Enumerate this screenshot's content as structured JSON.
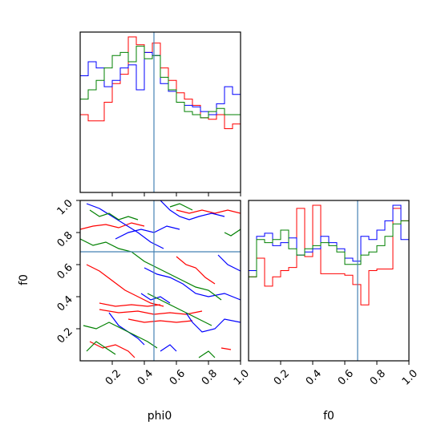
{
  "chart_data": {
    "type": "corner",
    "variables": [
      "phi0",
      "f0"
    ],
    "truths": {
      "phi0": 0.46,
      "f0": 0.68
    },
    "ranges": {
      "phi0": [
        0,
        1
      ],
      "f0": [
        0,
        1
      ]
    },
    "ticks": {
      "phi0": [
        0.2,
        0.4,
        0.6,
        0.8,
        1.0
      ],
      "f0": [
        0.2,
        0.4,
        0.6,
        0.8,
        1.0
      ]
    },
    "tick_labels": {
      "phi0": [
        "0.2",
        "0.4",
        "0.6",
        "0.8",
        "1.0"
      ],
      "f0": [
        "0.2",
        "0.4",
        "0.6",
        "0.8",
        "1.0"
      ]
    },
    "xlabel_phi0": "phi0",
    "xlabel_f0": "f0",
    "ylabel_f0": "f0",
    "series_colors": [
      "#ff0000",
      "#0000ff",
      "#008000"
    ],
    "hist_phi0": {
      "bins": 20,
      "series": [
        {
          "color": "#ff0000",
          "values": [
            0.5,
            0.46,
            0.46,
            0.58,
            0.7,
            0.76,
            1.0,
            0.95,
            0.9,
            0.96,
            0.8,
            0.72,
            0.64,
            0.6,
            0.56,
            0.48,
            0.47,
            0.5,
            0.41,
            0.44
          ]
        },
        {
          "color": "#0000ff",
          "values": [
            0.75,
            0.84,
            0.8,
            0.68,
            0.72,
            0.8,
            0.82,
            0.66,
            0.9,
            0.88,
            0.7,
            0.65,
            0.58,
            0.56,
            0.55,
            0.52,
            0.5,
            0.57,
            0.68,
            0.63
          ]
        },
        {
          "color": "#008000",
          "values": [
            0.6,
            0.66,
            0.72,
            0.8,
            0.88,
            0.9,
            0.84,
            0.94,
            0.86,
            0.88,
            0.74,
            0.66,
            0.58,
            0.52,
            0.5,
            0.48,
            0.52,
            0.54,
            0.5,
            0.5
          ]
        }
      ]
    },
    "hist_f0": {
      "bins": 20,
      "series": [
        {
          "color": "#ff0000",
          "values": [
            0.54,
            0.66,
            0.48,
            0.54,
            0.58,
            0.6,
            0.98,
            0.67,
            1.0,
            0.56,
            0.56,
            0.56,
            0.55,
            0.49,
            0.36,
            0.58,
            0.59,
            0.59,
            0.98,
            0.9
          ]
        },
        {
          "color": "#0000ff",
          "values": [
            0.58,
            0.8,
            0.82,
            0.74,
            0.76,
            0.79,
            0.68,
            0.7,
            0.72,
            0.8,
            0.76,
            0.72,
            0.66,
            0.64,
            0.8,
            0.78,
            0.84,
            0.9,
            1.0,
            0.78
          ]
        },
        {
          "color": "#008000",
          "values": [
            0.54,
            0.78,
            0.76,
            0.78,
            0.84,
            0.72,
            0.68,
            0.72,
            0.74,
            0.76,
            0.74,
            0.7,
            0.62,
            0.62,
            0.68,
            0.7,
            0.74,
            0.8,
            0.88,
            0.9
          ]
        }
      ]
    },
    "contours": [
      {
        "color": "#ff0000",
        "lines": [
          [
            [
              0.0,
              0.82
            ],
            [
              0.08,
              0.84
            ],
            [
              0.16,
              0.85
            ],
            [
              0.24,
              0.83
            ],
            [
              0.32,
              0.86
            ],
            [
              0.4,
              0.84
            ]
          ],
          [
            [
              0.6,
              0.94
            ],
            [
              0.68,
              0.92
            ],
            [
              0.76,
              0.94
            ],
            [
              0.84,
              0.92
            ],
            [
              0.92,
              0.94
            ],
            [
              1.0,
              0.92
            ]
          ],
          [
            [
              0.04,
              0.6
            ],
            [
              0.12,
              0.56
            ],
            [
              0.2,
              0.5
            ],
            [
              0.28,
              0.44
            ],
            [
              0.36,
              0.4
            ],
            [
              0.44,
              0.36
            ],
            [
              0.52,
              0.34
            ]
          ],
          [
            [
              0.12,
              0.36
            ],
            [
              0.22,
              0.34
            ],
            [
              0.32,
              0.35
            ],
            [
              0.42,
              0.34
            ],
            [
              0.5,
              0.35
            ]
          ],
          [
            [
              0.12,
              0.32
            ],
            [
              0.24,
              0.3
            ],
            [
              0.36,
              0.31
            ],
            [
              0.46,
              0.29
            ],
            [
              0.56,
              0.3
            ],
            [
              0.66,
              0.29
            ],
            [
              0.76,
              0.31
            ]
          ],
          [
            [
              0.3,
              0.26
            ],
            [
              0.4,
              0.24
            ],
            [
              0.5,
              0.25
            ],
            [
              0.6,
              0.24
            ],
            [
              0.7,
              0.25
            ]
          ],
          [
            [
              0.6,
              0.65
            ],
            [
              0.66,
              0.6
            ],
            [
              0.72,
              0.58
            ],
            [
              0.78,
              0.52
            ],
            [
              0.84,
              0.48
            ]
          ],
          [
            [
              0.06,
              0.12
            ],
            [
              0.14,
              0.08
            ],
            [
              0.22,
              0.1
            ],
            [
              0.3,
              0.06
            ],
            [
              0.34,
              0.02
            ]
          ],
          [
            [
              0.88,
              0.08
            ],
            [
              0.94,
              0.07
            ]
          ]
        ]
      },
      {
        "color": "#0000ff",
        "lines": [
          [
            [
              0.04,
              0.98
            ],
            [
              0.12,
              0.95
            ],
            [
              0.2,
              0.9
            ],
            [
              0.28,
              0.85
            ],
            [
              0.36,
              0.8
            ],
            [
              0.44,
              0.74
            ],
            [
              0.52,
              0.7
            ]
          ],
          [
            [
              0.22,
              0.76
            ],
            [
              0.3,
              0.8
            ],
            [
              0.38,
              0.82
            ],
            [
              0.46,
              0.8
            ],
            [
              0.54,
              0.84
            ],
            [
              0.62,
              0.82
            ]
          ],
          [
            [
              0.5,
              1.0
            ],
            [
              0.56,
              0.94
            ],
            [
              0.62,
              0.9
            ],
            [
              0.68,
              0.88
            ],
            [
              0.74,
              0.9
            ],
            [
              0.82,
              0.92
            ],
            [
              0.9,
              0.9
            ]
          ],
          [
            [
              0.4,
              0.58
            ],
            [
              0.48,
              0.54
            ],
            [
              0.56,
              0.52
            ],
            [
              0.64,
              0.48
            ],
            [
              0.72,
              0.42
            ],
            [
              0.8,
              0.4
            ],
            [
              0.9,
              0.42
            ],
            [
              1.0,
              0.38
            ]
          ],
          [
            [
              0.38,
              0.42
            ],
            [
              0.44,
              0.38
            ],
            [
              0.5,
              0.4
            ],
            [
              0.56,
              0.36
            ]
          ],
          [
            [
              0.18,
              0.3
            ],
            [
              0.24,
              0.22
            ],
            [
              0.3,
              0.18
            ],
            [
              0.36,
              0.14
            ],
            [
              0.4,
              0.1
            ]
          ],
          [
            [
              0.66,
              0.3
            ],
            [
              0.7,
              0.24
            ],
            [
              0.76,
              0.18
            ],
            [
              0.84,
              0.2
            ],
            [
              0.9,
              0.26
            ],
            [
              1.0,
              0.24
            ]
          ],
          [
            [
              0.86,
              0.66
            ],
            [
              0.92,
              0.6
            ],
            [
              1.0,
              0.56
            ]
          ],
          [
            [
              0.5,
              0.06
            ],
            [
              0.56,
              0.1
            ],
            [
              0.6,
              0.06
            ]
          ]
        ]
      },
      {
        "color": "#008000",
        "lines": [
          [
            [
              0.06,
              0.94
            ],
            [
              0.12,
              0.9
            ],
            [
              0.18,
              0.92
            ],
            [
              0.24,
              0.88
            ],
            [
              0.3,
              0.9
            ],
            [
              0.36,
              0.88
            ]
          ],
          [
            [
              0.0,
              0.76
            ],
            [
              0.08,
              0.72
            ],
            [
              0.16,
              0.74
            ],
            [
              0.24,
              0.7
            ],
            [
              0.32,
              0.68
            ],
            [
              0.4,
              0.62
            ],
            [
              0.48,
              0.58
            ],
            [
              0.56,
              0.54
            ],
            [
              0.64,
              0.5
            ],
            [
              0.72,
              0.46
            ],
            [
              0.8,
              0.44
            ],
            [
              0.88,
              0.38
            ]
          ],
          [
            [
              0.56,
              0.96
            ],
            [
              0.62,
              0.98
            ],
            [
              0.7,
              0.94
            ]
          ],
          [
            [
              0.9,
              0.8
            ],
            [
              0.94,
              0.78
            ],
            [
              1.0,
              0.82
            ]
          ],
          [
            [
              0.02,
              0.22
            ],
            [
              0.1,
              0.2
            ],
            [
              0.18,
              0.24
            ],
            [
              0.26,
              0.2
            ],
            [
              0.34,
              0.16
            ],
            [
              0.42,
              0.12
            ],
            [
              0.48,
              0.08
            ]
          ],
          [
            [
              0.42,
              0.42
            ],
            [
              0.5,
              0.38
            ],
            [
              0.58,
              0.34
            ],
            [
              0.66,
              0.3
            ],
            [
              0.74,
              0.26
            ],
            [
              0.82,
              0.22
            ]
          ],
          [
            [
              0.04,
              0.06
            ],
            [
              0.1,
              0.12
            ],
            [
              0.16,
              0.08
            ],
            [
              0.22,
              0.04
            ]
          ],
          [
            [
              0.74,
              0.02
            ],
            [
              0.8,
              0.06
            ],
            [
              0.84,
              0.02
            ]
          ]
        ]
      }
    ]
  }
}
